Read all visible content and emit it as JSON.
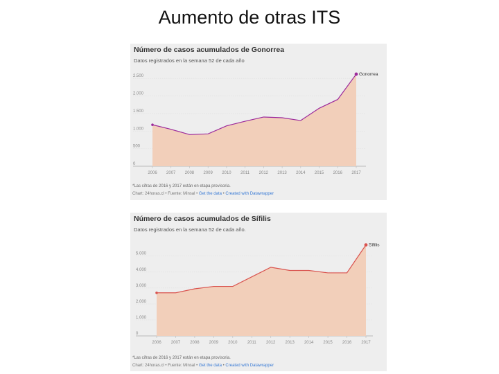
{
  "slide": {
    "title": "Aumento de otras ITS"
  },
  "chart_data": [
    {
      "type": "area",
      "title": "Número de casos acumulados de Gonorrea",
      "subtitle": "Datos registrados en la semana 52 de cada año",
      "x": [
        "2006",
        "2007",
        "2008",
        "2009",
        "2010",
        "2011",
        "2012",
        "2013",
        "2014",
        "2015",
        "2016",
        "2017"
      ],
      "series": [
        {
          "name": "Gonorrea",
          "values": [
            1180,
            1050,
            900,
            920,
            1150,
            1280,
            1400,
            1380,
            1300,
            1650,
            1900,
            2620
          ]
        }
      ],
      "y_ticks": [
        0,
        500,
        1000,
        1500,
        2000,
        2500
      ],
      "y_tick_labels": [
        "0",
        "500",
        "1.000",
        "1.500",
        "2.000",
        "2.500"
      ],
      "ylim": [
        0,
        2700
      ],
      "grid": true,
      "note": "*Las cifras de 2016 y 2017 están en etapa provisoria.",
      "credit": "Chart: 24horas.cl • Fuente: Minsal •",
      "credit_link_1": "Get the data",
      "credit_sep": "•",
      "credit_link_2": "Created with Datawrapper",
      "colors": {
        "fill": "#f2cfba",
        "line": "#9c2a9c",
        "end_dot": "#9c2a9c"
      }
    },
    {
      "type": "area",
      "title": "Número de casos acumulados de Sífilis",
      "subtitle": "Datos registrados en la semana 52 de cada año.",
      "x": [
        "2006",
        "2007",
        "2008",
        "2009",
        "2010",
        "2011",
        "2012",
        "2013",
        "2014",
        "2015",
        "2016",
        "2017"
      ],
      "series": [
        {
          "name": "Sífilis",
          "values": [
            2700,
            2700,
            2950,
            3100,
            3100,
            3700,
            4300,
            4100,
            4100,
            3950,
            3950,
            5700
          ]
        }
      ],
      "y_ticks": [
        0,
        1000,
        2000,
        3000,
        4000,
        5000
      ],
      "y_tick_labels": [
        "0",
        "1.000",
        "2.000",
        "3.000",
        "4.000",
        "5.000"
      ],
      "ylim": [
        0,
        5900
      ],
      "grid": true,
      "note": "*Las cifras de 2016 y 2017 están en etapa provisoria.",
      "credit": "Chart: 24horas.cl • Fuente: Minsal •",
      "credit_link_1": "Get the data",
      "credit_sep": "•",
      "credit_link_2": "Created with Datawrapper",
      "colors": {
        "fill": "#f2cfba",
        "line": "#d9534f",
        "end_dot": "#d9534f"
      }
    }
  ]
}
